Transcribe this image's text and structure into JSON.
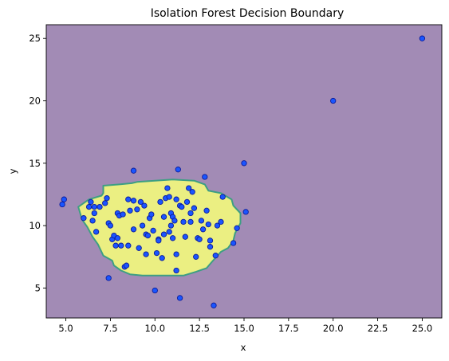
{
  "chart_data": {
    "type": "scatter",
    "title": "Isolation Forest Decision Boundary",
    "xlabel": "x",
    "ylabel": "y",
    "xlim": [
      3.9,
      26.1
    ],
    "ylim": [
      2.6,
      26.1
    ],
    "x_ticks": [
      "5.0",
      "7.5",
      "10.0",
      "12.5",
      "15.0",
      "17.5",
      "20.0",
      "22.5",
      "25.0"
    ],
    "y_ticks": [
      "5",
      "10",
      "15",
      "20",
      "25"
    ],
    "background_color": "#a28bb5",
    "inlier_region_color": "#ebef82",
    "boundary_color": "#3d9f83",
    "point_fill_color": "#1a55ff",
    "point_edge_color": "#0d1c99",
    "inlier_region_boundary": [
      [
        5.7,
        11.5
      ],
      [
        6.3,
        12.1
      ],
      [
        7.0,
        12.4
      ],
      [
        7.1,
        12.6
      ],
      [
        7.1,
        13.2
      ],
      [
        8.0,
        13.3
      ],
      [
        8.7,
        13.4
      ],
      [
        9.0,
        13.5
      ],
      [
        10.0,
        13.6
      ],
      [
        11.0,
        13.7
      ],
      [
        12.2,
        13.6
      ],
      [
        12.8,
        13.3
      ],
      [
        13.0,
        12.8
      ],
      [
        13.7,
        12.6
      ],
      [
        14.3,
        12.1
      ],
      [
        14.4,
        11.6
      ],
      [
        14.8,
        11.0
      ],
      [
        14.8,
        10.2
      ],
      [
        14.5,
        9.4
      ],
      [
        14.4,
        8.8
      ],
      [
        14.1,
        8.2
      ],
      [
        13.7,
        7.9
      ],
      [
        13.2,
        7.1
      ],
      [
        12.9,
        6.6
      ],
      [
        12.3,
        6.3
      ],
      [
        11.6,
        6.0
      ],
      [
        10.5,
        6.0
      ],
      [
        9.3,
        6.0
      ],
      [
        8.6,
        6.1
      ],
      [
        8.1,
        6.4
      ],
      [
        7.7,
        6.8
      ],
      [
        7.6,
        7.2
      ],
      [
        7.1,
        7.6
      ],
      [
        6.8,
        8.5
      ],
      [
        6.5,
        9.1
      ],
      [
        6.2,
        9.9
      ],
      [
        5.9,
        10.5
      ],
      [
        5.8,
        11.0
      ]
    ],
    "points": [
      [
        4.8,
        11.7
      ],
      [
        4.9,
        12.1
      ],
      [
        6.0,
        10.6
      ],
      [
        6.3,
        11.5
      ],
      [
        6.4,
        11.9
      ],
      [
        6.6,
        11.5
      ],
      [
        6.5,
        10.4
      ],
      [
        6.6,
        11.0
      ],
      [
        6.7,
        9.5
      ],
      [
        6.9,
        11.5
      ],
      [
        7.2,
        11.8
      ],
      [
        7.3,
        12.2
      ],
      [
        7.4,
        10.2
      ],
      [
        7.4,
        5.8
      ],
      [
        7.5,
        10.0
      ],
      [
        7.6,
        8.9
      ],
      [
        7.7,
        9.2
      ],
      [
        7.8,
        8.4
      ],
      [
        7.9,
        9.0
      ],
      [
        7.9,
        11.0
      ],
      [
        8.0,
        10.8
      ],
      [
        8.1,
        8.4
      ],
      [
        8.2,
        10.9
      ],
      [
        8.3,
        6.7
      ],
      [
        8.4,
        6.8
      ],
      [
        8.5,
        8.4
      ],
      [
        8.5,
        12.1
      ],
      [
        8.6,
        11.2
      ],
      [
        8.8,
        9.7
      ],
      [
        8.8,
        14.4
      ],
      [
        8.8,
        12.0
      ],
      [
        9.0,
        11.3
      ],
      [
        9.1,
        8.2
      ],
      [
        9.2,
        11.9
      ],
      [
        9.3,
        10.0
      ],
      [
        9.4,
        11.6
      ],
      [
        9.5,
        9.3
      ],
      [
        9.5,
        7.7
      ],
      [
        9.6,
        9.2
      ],
      [
        9.7,
        10.6
      ],
      [
        9.8,
        10.9
      ],
      [
        9.9,
        9.6
      ],
      [
        10.0,
        4.8
      ],
      [
        10.1,
        7.8
      ],
      [
        10.2,
        8.9
      ],
      [
        10.2,
        8.8
      ],
      [
        10.3,
        11.9
      ],
      [
        10.4,
        7.4
      ],
      [
        10.5,
        10.7
      ],
      [
        10.5,
        9.3
      ],
      [
        10.6,
        12.2
      ],
      [
        10.7,
        13.0
      ],
      [
        10.8,
        9.5
      ],
      [
        10.8,
        12.3
      ],
      [
        10.9,
        11.0
      ],
      [
        10.9,
        10.0
      ],
      [
        11.0,
        10.7
      ],
      [
        11.0,
        9.0
      ],
      [
        11.1,
        10.4
      ],
      [
        11.2,
        7.7
      ],
      [
        11.2,
        12.1
      ],
      [
        11.2,
        6.4
      ],
      [
        11.3,
        14.5
      ],
      [
        11.4,
        11.6
      ],
      [
        11.4,
        4.2
      ],
      [
        11.5,
        11.5
      ],
      [
        11.6,
        10.3
      ],
      [
        11.7,
        9.1
      ],
      [
        11.8,
        11.9
      ],
      [
        11.9,
        13.0
      ],
      [
        12.0,
        11.0
      ],
      [
        12.0,
        10.3
      ],
      [
        12.1,
        12.7
      ],
      [
        12.2,
        11.4
      ],
      [
        12.3,
        7.5
      ],
      [
        12.4,
        9.0
      ],
      [
        12.5,
        8.9
      ],
      [
        12.6,
        10.4
      ],
      [
        12.7,
        9.7
      ],
      [
        12.8,
        13.9
      ],
      [
        12.9,
        11.2
      ],
      [
        13.0,
        10.1
      ],
      [
        13.1,
        8.3
      ],
      [
        13.1,
        8.8
      ],
      [
        13.3,
        3.6
      ],
      [
        13.4,
        7.6
      ],
      [
        13.5,
        10.0
      ],
      [
        13.7,
        10.3
      ],
      [
        13.8,
        12.3
      ],
      [
        14.4,
        8.6
      ],
      [
        14.6,
        9.8
      ],
      [
        15.0,
        15.0
      ],
      [
        15.1,
        11.1
      ],
      [
        20.0,
        20.0
      ],
      [
        25.0,
        25.0
      ]
    ]
  }
}
